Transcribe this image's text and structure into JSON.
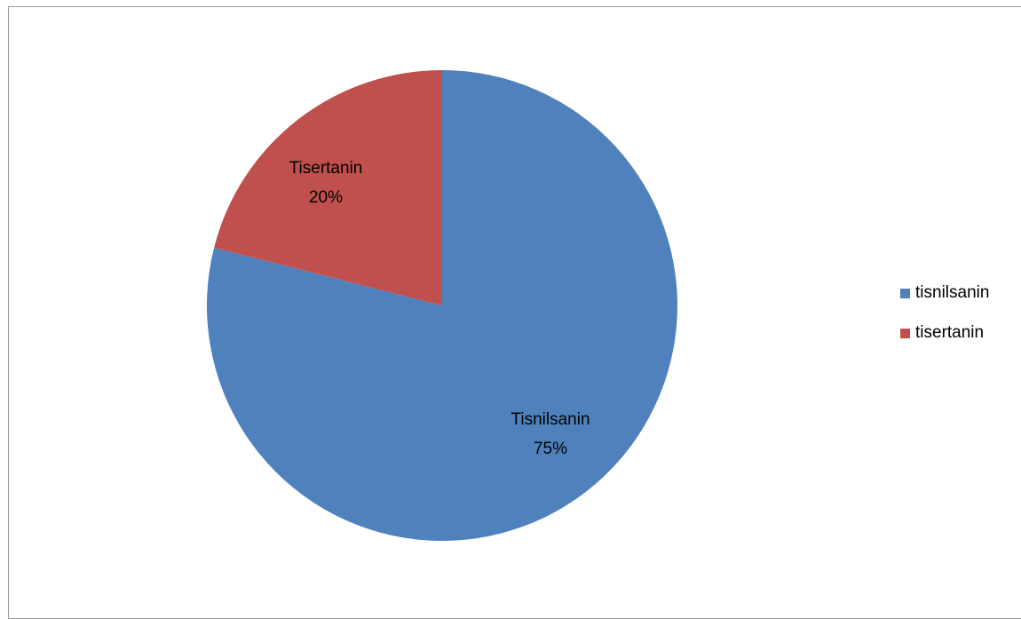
{
  "chart_data": {
    "type": "pie",
    "categories": [
      "tisnilsanin",
      "tisertanin"
    ],
    "values": [
      75,
      20
    ],
    "slices": [
      {
        "name": "tisnilsanin",
        "value": 75,
        "label_line1": "Tisnilsanin",
        "label_line2": "75%",
        "color": "#4F81BD"
      },
      {
        "name": "tisertanin",
        "value": 20,
        "label_line1": "Tisertanin",
        "label_line2": "20%",
        "color": "#C0504D"
      }
    ],
    "legend": {
      "position": "right",
      "items": [
        {
          "label": "tisnilsanin",
          "color": "#4F81BD"
        },
        {
          "label": "tisertanin",
          "color": "#C0504D"
        }
      ]
    }
  }
}
